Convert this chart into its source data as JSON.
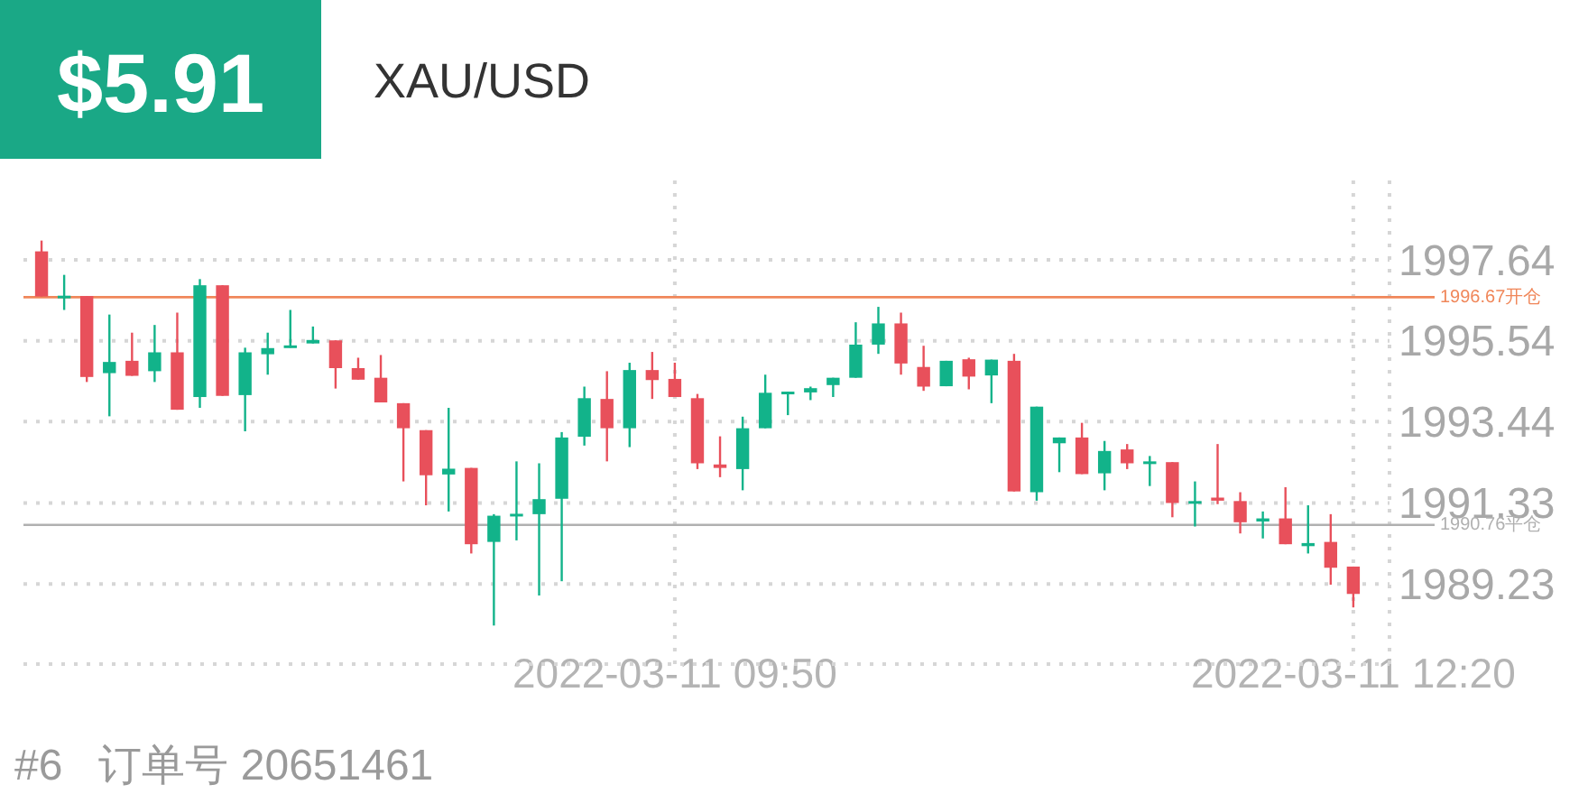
{
  "chart_data": {
    "type": "candlestick",
    "title": "$5.91",
    "subtitle": "XAU/USD",
    "x": [
      "2022-03-11T07:30",
      "2022-03-11T07:35",
      "2022-03-11T07:40",
      "2022-03-11T07:45",
      "2022-03-11T07:50",
      "2022-03-11T07:55",
      "2022-03-11T08:00",
      "2022-03-11T08:05",
      "2022-03-11T08:10",
      "2022-03-11T08:15",
      "2022-03-11T08:20",
      "2022-03-11T08:25",
      "2022-03-11T08:30",
      "2022-03-11T08:35",
      "2022-03-11T08:40",
      "2022-03-11T08:45",
      "2022-03-11T08:50",
      "2022-03-11T08:55",
      "2022-03-11T09:00",
      "2022-03-11T09:05",
      "2022-03-11T09:10",
      "2022-03-11T09:15",
      "2022-03-11T09:20",
      "2022-03-11T09:25",
      "2022-03-11T09:30",
      "2022-03-11T09:35",
      "2022-03-11T09:40",
      "2022-03-11T09:45",
      "2022-03-11T09:50",
      "2022-03-11T09:55",
      "2022-03-11T10:00",
      "2022-03-11T10:05",
      "2022-03-11T10:10",
      "2022-03-11T10:15",
      "2022-03-11T10:20",
      "2022-03-11T10:25",
      "2022-03-11T10:30",
      "2022-03-11T10:35",
      "2022-03-11T10:40",
      "2022-03-11T10:45",
      "2022-03-11T10:50",
      "2022-03-11T10:55",
      "2022-03-11T11:00",
      "2022-03-11T11:05",
      "2022-03-11T11:10",
      "2022-03-11T11:15",
      "2022-03-11T11:20",
      "2022-03-11T11:25",
      "2022-03-11T11:30",
      "2022-03-11T11:35",
      "2022-03-11T11:40",
      "2022-03-11T11:45",
      "2022-03-11T11:50",
      "2022-03-11T11:55",
      "2022-03-11T12:00",
      "2022-03-11T12:05",
      "2022-03-11T12:10",
      "2022-03-11T12:15",
      "2022-03-11T12:20"
    ],
    "ohlc": [
      [
        1997.86,
        1998.14,
        1996.69,
        1996.69
      ],
      [
        1996.69,
        1997.25,
        1996.34,
        1996.71
      ],
      [
        1996.7,
        1996.7,
        1994.47,
        1994.6
      ],
      [
        1994.7,
        1996.22,
        1993.58,
        1994.99
      ],
      [
        1995.02,
        1995.75,
        1994.63,
        1994.63
      ],
      [
        1994.75,
        1995.95,
        1994.47,
        1995.24
      ],
      [
        1995.24,
        1996.27,
        1993.75,
        1993.75
      ],
      [
        1994.08,
        1997.14,
        1993.8,
        1996.98
      ],
      [
        1996.98,
        1996.98,
        1994.11,
        1994.11
      ],
      [
        1994.13,
        1995.36,
        1993.19,
        1995.24
      ],
      [
        1995.19,
        1995.75,
        1994.66,
        1995.35
      ],
      [
        1995.36,
        1996.34,
        1995.36,
        1995.42
      ],
      [
        1995.47,
        1995.91,
        1995.47,
        1995.56
      ],
      [
        1995.55,
        1995.55,
        1994.3,
        1994.83
      ],
      [
        1994.83,
        1995.1,
        1994.53,
        1994.53
      ],
      [
        1994.58,
        1995.17,
        1993.94,
        1993.94
      ],
      [
        1993.92,
        1993.92,
        1991.89,
        1993.27
      ],
      [
        1993.22,
        1993.22,
        1991.27,
        1992.05
      ],
      [
        1992.07,
        1993.8,
        1991.11,
        1992.22
      ],
      [
        1992.24,
        1992.24,
        1990.02,
        1990.26
      ],
      [
        1990.32,
        1991.04,
        1988.15,
        1991.0
      ],
      [
        1991.0,
        1992.41,
        1990.36,
        1991.05
      ],
      [
        1991.04,
        1992.36,
        1988.93,
        1991.43
      ],
      [
        1991.44,
        1993.17,
        1989.3,
        1993.03
      ],
      [
        1993.05,
        1994.35,
        1992.82,
        1994.05
      ],
      [
        1994.03,
        1994.75,
        1992.41,
        1993.27
      ],
      [
        1993.27,
        1994.97,
        1992.78,
        1994.78
      ],
      [
        1994.78,
        1995.25,
        1994.03,
        1994.52
      ],
      [
        1994.55,
        1994.97,
        1994.08,
        1994.08
      ],
      [
        1994.05,
        1994.16,
        1992.21,
        1992.36
      ],
      [
        1992.33,
        1993.06,
        1992.0,
        1992.24
      ],
      [
        1992.21,
        1993.57,
        1991.66,
        1993.27
      ],
      [
        1993.27,
        1994.66,
        1993.27,
        1994.19
      ],
      [
        1994.16,
        1994.22,
        1993.61,
        1994.22
      ],
      [
        1994.2,
        1994.35,
        1994.0,
        1994.31
      ],
      [
        1994.39,
        1994.58,
        1994.08,
        1994.58
      ],
      [
        1994.58,
        1996.02,
        1994.58,
        1995.44
      ],
      [
        1995.44,
        1996.42,
        1995.2,
        1995.99
      ],
      [
        1995.99,
        1996.27,
        1994.66,
        1994.95
      ],
      [
        1994.86,
        1995.41,
        1994.24,
        1994.35
      ],
      [
        1994.36,
        1995.02,
        1994.36,
        1995.02
      ],
      [
        1995.06,
        1995.1,
        1994.28,
        1994.61
      ],
      [
        1994.64,
        1995.05,
        1993.92,
        1995.05
      ],
      [
        1995.02,
        1995.2,
        1991.63,
        1991.63
      ],
      [
        1991.61,
        1993.83,
        1991.39,
        1993.83
      ],
      [
        1992.88,
        1993.03,
        1992.13,
        1993.03
      ],
      [
        1993.03,
        1993.41,
        1992.08,
        1992.08
      ],
      [
        1992.1,
        1992.94,
        1991.66,
        1992.68
      ],
      [
        1992.72,
        1992.86,
        1992.21,
        1992.36
      ],
      [
        1992.35,
        1992.55,
        1991.77,
        1992.41
      ],
      [
        1992.39,
        1992.39,
        1990.96,
        1991.33
      ],
      [
        1991.32,
        1991.89,
        1990.72,
        1991.38
      ],
      [
        1991.47,
        1992.86,
        1991.3,
        1991.39
      ],
      [
        1991.38,
        1991.61,
        1990.54,
        1990.83
      ],
      [
        1990.85,
        1991.11,
        1990.41,
        1990.93
      ],
      [
        1990.93,
        1991.74,
        1990.26,
        1990.26
      ],
      [
        1990.21,
        1991.27,
        1990.02,
        1990.29
      ],
      [
        1990.32,
        1991.04,
        1989.21,
        1989.65
      ],
      [
        1989.68,
        1989.68,
        1988.62,
        1988.97
      ]
    ],
    "colors": [
      "#e8505b",
      "#12b38a",
      "#e8505b",
      "#12b38a",
      "#e8505b",
      "#12b38a",
      "#e8505b",
      "#12b38a",
      "#e8505b",
      "#12b38a",
      "#12b38a",
      "#12b38a",
      "#12b38a",
      "#e8505b",
      "#e8505b",
      "#e8505b",
      "#e8505b",
      "#e8505b",
      "#12b38a",
      "#e8505b",
      "#12b38a",
      "#12b38a",
      "#12b38a",
      "#12b38a",
      "#12b38a",
      "#e8505b",
      "#12b38a",
      "#e8505b",
      "#e8505b",
      "#e8505b",
      "#e8505b",
      "#12b38a",
      "#12b38a",
      "#12b38a",
      "#12b38a",
      "#12b38a",
      "#12b38a",
      "#12b38a",
      "#e8505b",
      "#e8505b",
      "#12b38a",
      "#e8505b",
      "#12b38a",
      "#e8505b",
      "#12b38a",
      "#12b38a",
      "#e8505b",
      "#12b38a",
      "#e8505b",
      "#12b38a",
      "#e8505b",
      "#12b38a",
      "#e8505b",
      "#e8505b",
      "#12b38a",
      "#e8505b",
      "#12b38a",
      "#e8505b",
      "#e8505b"
    ],
    "xlim": [
      "2022-03-11T07:26",
      "2022-03-11T12:28"
    ],
    "xticks": [
      {
        "value": "2022-03-11T09:50",
        "label": "2022-03-11 09:50"
      },
      {
        "value": "2022-03-11T12:20",
        "label": "2022-03-11 12:20"
      }
    ],
    "ylim": [
      1987.15,
      1999.7
    ],
    "yticks": [
      1989.23,
      1991.33,
      1993.44,
      1995.54,
      1997.64
    ],
    "ref_lines": [
      {
        "axis": "y",
        "value": 1996.67,
        "label": "1996.67开仓",
        "color": "#f0875a"
      },
      {
        "axis": "y",
        "value": 1990.76,
        "label": "1990.76平仓",
        "color": "#b0b0b0"
      }
    ],
    "grid": true,
    "annotations": [
      "#6   订单号 20651461"
    ]
  }
}
